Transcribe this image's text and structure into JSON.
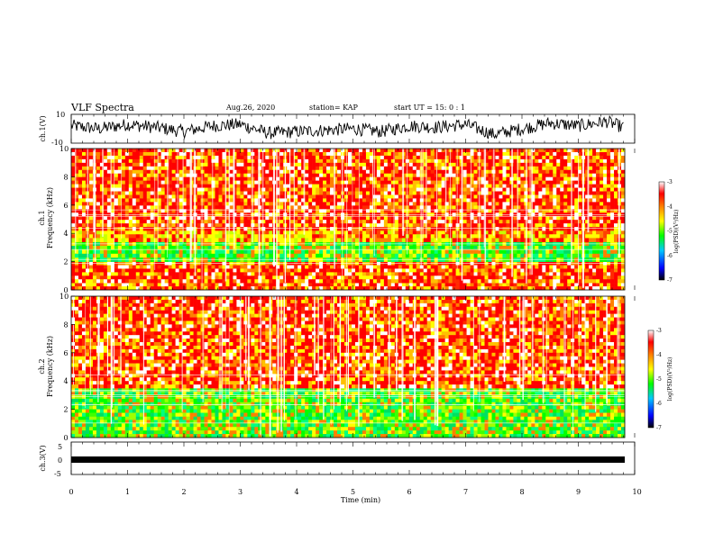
{
  "header": {
    "title": "VLF Spectra",
    "date": "Aug.26, 2020",
    "station": "station= KAP",
    "start": "start  UT =   15: 0  : 1"
  },
  "colors": {
    "spectrogram_palette": [
      "#000000",
      "#0000ff",
      "#00c8ff",
      "#00ff00",
      "#ffff00",
      "#ff8000",
      "#ff0000",
      "#ffffff"
    ],
    "trace": "#000000"
  },
  "chart_data": [
    {
      "type": "line",
      "name": "ch1-waveform",
      "ylabel": "ch.1(V)",
      "ylim": [
        -10,
        10
      ],
      "yticklabels": [
        "10",
        "-10"
      ],
      "x_unit": "min",
      "x": [
        0,
        0.5,
        1,
        1.5,
        2,
        2.5,
        3,
        3.5,
        4,
        4.5,
        5,
        5.5,
        6,
        6.5,
        7,
        7.5,
        8,
        8.5,
        9,
        9.5,
        9.8
      ],
      "y": [
        2,
        0,
        3,
        1,
        -2,
        2,
        3,
        -3,
        -2,
        -1,
        0,
        -2,
        2,
        1,
        3,
        -4,
        0,
        4,
        2,
        5,
        1
      ]
    },
    {
      "type": "heatmap",
      "name": "ch1-spectrogram",
      "ylabel": "Frequency (kHz)",
      "ylabel_channel": "ch.1",
      "ylim": [
        0,
        10
      ],
      "yticks": [
        "0",
        "2",
        "4",
        "6",
        "8",
        "10"
      ],
      "xlim": [
        0,
        10
      ],
      "colorbar": {
        "label": "log(PSD)(V²/Hz)",
        "range": [
          -7,
          -3
        ],
        "ticks": [
          "-3",
          "-4",
          "-5",
          "-6",
          "-7"
        ]
      },
      "bands_khz": [
        {
          "from": 0.0,
          "to": 0.5,
          "level": "high"
        },
        {
          "from": 0.5,
          "to": 2.0,
          "level": "high"
        },
        {
          "from": 2.0,
          "to": 3.4,
          "level": "medium"
        },
        {
          "from": 3.4,
          "to": 4.2,
          "level": "medium-high"
        },
        {
          "from": 4.2,
          "to": 10.0,
          "level": "high"
        }
      ]
    },
    {
      "type": "heatmap",
      "name": "ch2-spectrogram",
      "ylabel": "Frequency (kHz)",
      "ylabel_channel": "ch.2",
      "ylim": [
        0,
        10
      ],
      "yticks": [
        "0",
        "2",
        "4",
        "6",
        "8",
        "10"
      ],
      "xlim": [
        0,
        10
      ],
      "colorbar": {
        "label": "log(PSD)(V²/Hz)",
        "range": [
          -7,
          -3
        ],
        "ticks": [
          "-3",
          "-4",
          "-5",
          "-6",
          "-7"
        ]
      },
      "bands_khz": [
        {
          "from": 0.0,
          "to": 1.5,
          "level": "medium"
        },
        {
          "from": 1.5,
          "to": 3.5,
          "level": "medium"
        },
        {
          "from": 3.5,
          "to": 10.0,
          "level": "high"
        }
      ]
    },
    {
      "type": "line",
      "name": "ch3-waveform",
      "ylabel": "ch.3(V)",
      "ylim": [
        -5,
        5
      ],
      "yticklabels": [
        "5",
        "0",
        "-5"
      ],
      "x_unit": "min",
      "x": [
        0,
        9.8
      ],
      "y": [
        0,
        0
      ]
    }
  ],
  "xaxis": {
    "label": "Time (min)",
    "ticks": [
      "0",
      "1",
      "2",
      "3",
      "4",
      "5",
      "6",
      "7",
      "8",
      "9",
      "10"
    ]
  }
}
